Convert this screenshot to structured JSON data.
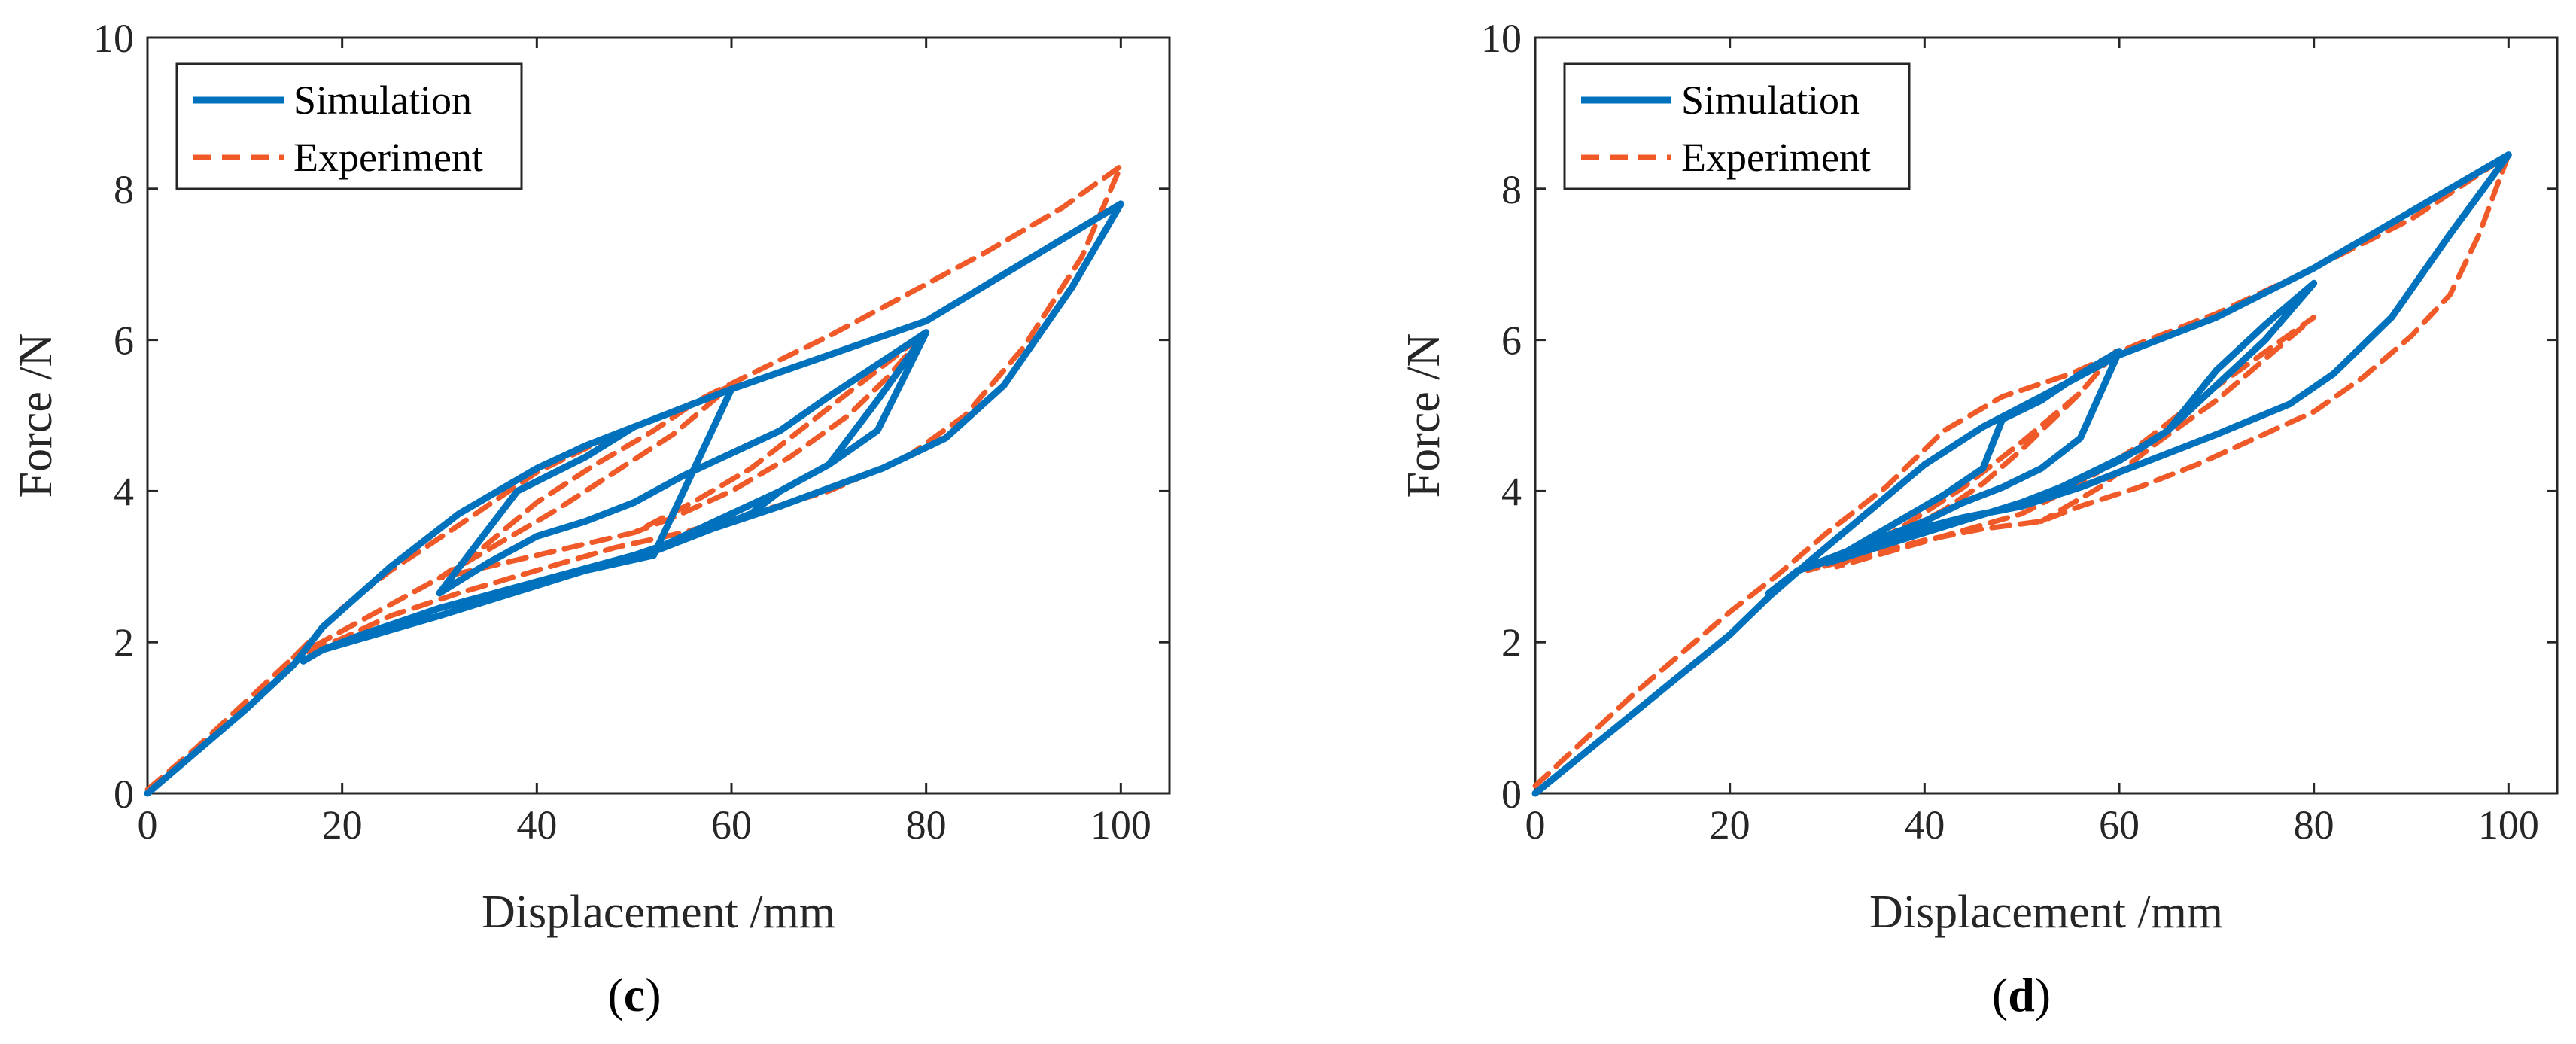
{
  "colors": {
    "simulation": "#0072BD",
    "experiment": "#F05A28",
    "axis": "#262626"
  },
  "chart_data": [
    {
      "type": "line",
      "panel_label": "c",
      "xlabel": "Displacement /mm",
      "ylabel": "Force /N",
      "xlim": [
        0,
        105
      ],
      "ylim": [
        0,
        10
      ],
      "xticks": [
        0,
        20,
        40,
        60,
        80,
        100
      ],
      "yticks": [
        0,
        2,
        4,
        6,
        8,
        10
      ],
      "grid": false,
      "legend_position": "top-left",
      "series": [
        {
          "name": "Simulation",
          "style": "solid",
          "x": [
            0,
            5,
            10,
            15,
            18,
            25,
            32,
            40,
            45,
            50,
            60,
            70,
            80,
            100,
            95,
            88,
            82,
            75.5,
            65,
            58,
            50,
            40,
            30,
            22,
            18,
            16,
            18,
            22,
            26,
            30,
            35,
            40,
            45,
            52,
            60,
            55,
            50,
            45,
            38,
            30,
            35,
            40,
            45,
            50,
            55,
            60,
            65,
            70,
            80,
            75,
            70,
            65,
            62,
            55,
            50,
            55,
            60,
            65,
            70,
            75,
            80
          ],
          "y": [
            0,
            0.55,
            1.1,
            1.7,
            2.2,
            3.0,
            3.7,
            4.3,
            4.6,
            4.85,
            5.35,
            5.8,
            6.25,
            7.8,
            6.7,
            5.4,
            4.7,
            4.3,
            3.8,
            3.5,
            3.15,
            2.8,
            2.45,
            2.1,
            1.9,
            1.75,
            1.9,
            2.05,
            2.2,
            2.35,
            2.55,
            2.75,
            2.95,
            3.15,
            5.35,
            5.1,
            4.85,
            4.45,
            4.0,
            2.65,
            3.05,
            3.4,
            3.6,
            3.85,
            4.2,
            4.5,
            4.8,
            5.25,
            6.1,
            5.2,
            4.35,
            4.0,
            3.7,
            3.35,
            3.1,
            3.4,
            3.7,
            4.0,
            4.35,
            4.8,
            6.1
          ]
        },
        {
          "name": "Experiment",
          "style": "dashed",
          "x": [
            0,
            5,
            10,
            15,
            20,
            25,
            32,
            40,
            48,
            55,
            62,
            70,
            78,
            86,
            94,
            100,
            96,
            90,
            84,
            78,
            70,
            62,
            55,
            48,
            40,
            32,
            25,
            20,
            15,
            30,
            36,
            42,
            48,
            54,
            60,
            56,
            52,
            46,
            40,
            34,
            30,
            50,
            56,
            62,
            68,
            74,
            80,
            76,
            72,
            66,
            60,
            54,
            50
          ],
          "y": [
            0.05,
            0.6,
            1.2,
            1.8,
            2.45,
            2.95,
            3.55,
            4.25,
            4.75,
            5.1,
            5.55,
            6.05,
            6.6,
            7.15,
            7.75,
            8.3,
            7.1,
            5.9,
            5.0,
            4.45,
            4.0,
            3.7,
            3.45,
            3.25,
            2.95,
            2.65,
            2.35,
            2.05,
            1.8,
            2.85,
            3.3,
            3.75,
            4.25,
            4.75,
            5.4,
            5.15,
            4.8,
            4.35,
            3.85,
            3.2,
            2.85,
            3.45,
            3.85,
            4.3,
            4.9,
            5.5,
            6.1,
            5.5,
            5.0,
            4.45,
            4.0,
            3.65,
            3.45
          ]
        }
      ]
    },
    {
      "type": "line",
      "panel_label": "d",
      "xlabel": "Displacement /mm",
      "ylabel": "Force /N",
      "xlim": [
        0,
        105
      ],
      "ylim": [
        0,
        10
      ],
      "xticks": [
        0,
        20,
        40,
        60,
        80,
        100
      ],
      "yticks": [
        0,
        2,
        4,
        6,
        8,
        10
      ],
      "grid": false,
      "legend_position": "top-left",
      "series": [
        {
          "name": "Simulation",
          "style": "solid",
          "x": [
            0,
            10,
            20,
            24,
            28,
            34,
            40,
            46,
            52,
            60,
            70,
            80,
            90,
            100,
            94,
            88,
            82,
            77.5,
            70,
            62,
            56,
            50,
            44,
            38,
            32,
            27,
            24,
            27,
            32,
            36,
            40,
            44,
            48,
            52,
            56,
            60,
            56,
            52,
            48,
            46,
            42,
            38,
            34,
            30,
            50,
            55,
            60,
            65,
            70,
            75,
            80,
            75,
            70,
            65,
            62,
            58,
            54,
            50
          ],
          "y": [
            0,
            1.05,
            2.1,
            2.6,
            3.05,
            3.7,
            4.35,
            4.85,
            5.25,
            5.8,
            6.3,
            6.95,
            7.7,
            8.45,
            7.4,
            6.3,
            5.55,
            5.15,
            4.75,
            4.35,
            4.05,
            3.8,
            3.65,
            3.45,
            3.15,
            2.95,
            2.65,
            2.95,
            3.2,
            3.4,
            3.6,
            3.85,
            4.05,
            4.3,
            4.7,
            5.85,
            5.55,
            5.2,
            4.95,
            4.3,
            3.95,
            3.65,
            3.35,
            3.05,
            3.85,
            4.1,
            4.4,
            4.8,
            5.4,
            6.0,
            6.75,
            6.2,
            5.6,
            4.8,
            4.55,
            4.3,
            4.05,
            3.85
          ]
        },
        {
          "name": "Experiment",
          "style": "dashed",
          "x": [
            0,
            5,
            10,
            15,
            20,
            25,
            30,
            36,
            42,
            48,
            55,
            62,
            70,
            80,
            90,
            100,
            97,
            94,
            90,
            85,
            80,
            74,
            68,
            62,
            56,
            52,
            46,
            40,
            34,
            28,
            32,
            38,
            44,
            50,
            56,
            60,
            56,
            50,
            46,
            42,
            36,
            31,
            50,
            56,
            62,
            68,
            74,
            80,
            75,
            70,
            64,
            58,
            52
          ],
          "y": [
            0.1,
            0.7,
            1.3,
            1.85,
            2.4,
            2.9,
            3.45,
            4.05,
            4.8,
            5.25,
            5.55,
            5.95,
            6.35,
            6.95,
            7.6,
            8.45,
            7.4,
            6.6,
            6.05,
            5.5,
            5.05,
            4.7,
            4.35,
            4.05,
            3.8,
            3.6,
            3.5,
            3.35,
            3.15,
            2.95,
            3.1,
            3.55,
            4.05,
            4.65,
            5.3,
            5.9,
            5.3,
            4.55,
            4.1,
            3.75,
            3.35,
            3.0,
            3.7,
            4.1,
            4.6,
            5.2,
            5.75,
            6.3,
            5.75,
            5.2,
            4.65,
            4.05,
            3.6
          ]
        }
      ]
    }
  ]
}
